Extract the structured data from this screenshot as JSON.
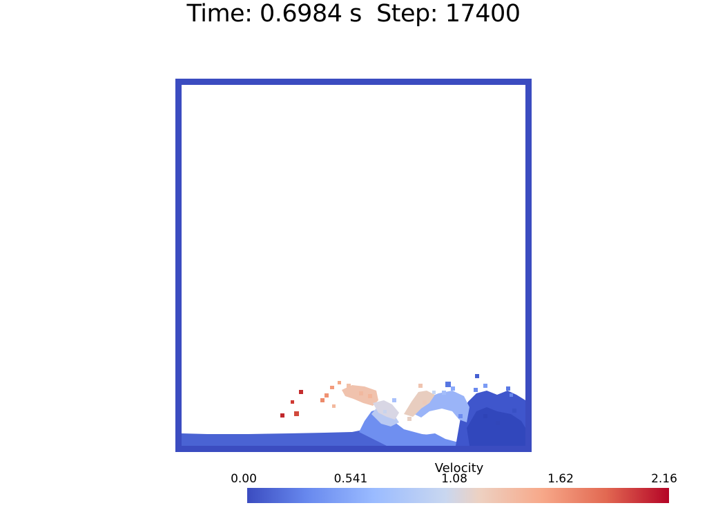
{
  "title": "Time: 0.6984 s  Step: 17400",
  "colors": {
    "container_wall": "#3b4cc0",
    "colormap": "coolwarm",
    "colormap_stops": [
      "#3b4cc0",
      "#6788ee",
      "#9abbff",
      "#c9d7f0",
      "#edd1c2",
      "#f7a889",
      "#e26952",
      "#b40426"
    ]
  },
  "colorbar": {
    "title": "Velocity",
    "ticks": [
      "0.00",
      "0.541",
      "1.08",
      "1.62",
      "2.16"
    ],
    "range": [
      0.0,
      2.16
    ]
  }
}
